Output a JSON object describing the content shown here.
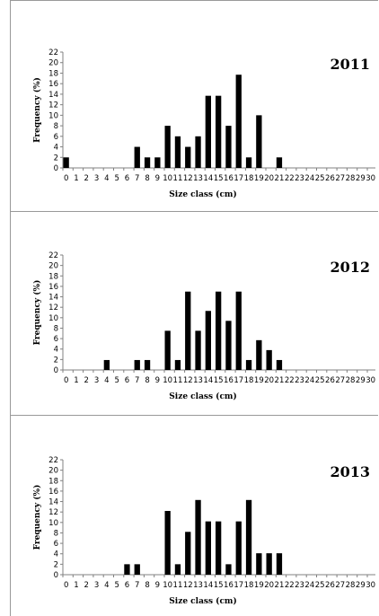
{
  "chart_data": [
    {
      "type": "bar",
      "title": "2011",
      "xlabel": "Size class (cm)",
      "ylabel": "Frequency (%)",
      "ylim": [
        0,
        22
      ],
      "yticks": [
        "0",
        "2",
        "4",
        "6",
        "8",
        "10",
        "12",
        "14",
        "16",
        "18",
        "20",
        "22"
      ],
      "categories": [
        "0",
        "1",
        "2",
        "3",
        "4",
        "5",
        "6",
        "7",
        "8",
        "9",
        "10",
        "11",
        "12",
        "13",
        "14",
        "15",
        "16",
        "17",
        "18",
        "19",
        "20",
        "21",
        "22",
        "23",
        "24",
        "25",
        "26",
        "27",
        "28",
        "29",
        "30"
      ],
      "values": [
        2,
        0,
        0,
        0,
        0,
        0,
        0,
        4,
        2,
        2,
        8,
        6,
        4,
        6,
        13.7,
        13.7,
        8,
        17.7,
        2,
        10,
        0,
        2,
        0,
        0,
        0,
        0,
        0,
        0,
        0,
        0,
        0
      ],
      "color": "#000000"
    },
    {
      "type": "bar",
      "title": "2012",
      "xlabel": "Size class (cm)",
      "ylabel": "Frequency (%)",
      "ylim": [
        0,
        22
      ],
      "yticks": [
        "0",
        "2",
        "4",
        "6",
        "8",
        "10",
        "12",
        "14",
        "16",
        "18",
        "20",
        "22"
      ],
      "categories": [
        "0",
        "1",
        "2",
        "3",
        "4",
        "5",
        "6",
        "7",
        "8",
        "9",
        "10",
        "11",
        "12",
        "13",
        "14",
        "15",
        "16",
        "17",
        "18",
        "19",
        "20",
        "21",
        "22",
        "23",
        "24",
        "25",
        "26",
        "27",
        "28",
        "29",
        "30"
      ],
      "values": [
        0,
        0,
        0,
        0,
        1.9,
        0,
        0,
        1.9,
        1.9,
        0,
        7.5,
        1.9,
        15,
        7.5,
        11.3,
        15,
        9.4,
        15,
        1.9,
        5.7,
        3.8,
        1.9,
        0,
        0,
        0,
        0,
        0,
        0,
        0,
        0,
        0
      ],
      "color": "#000000"
    },
    {
      "type": "bar",
      "title": "2013",
      "xlabel": "Size class (cm)",
      "ylabel": "Frequency (%)",
      "ylim": [
        0,
        22
      ],
      "yticks": [
        "0",
        "2",
        "4",
        "6",
        "8",
        "10",
        "12",
        "14",
        "16",
        "18",
        "20",
        "22"
      ],
      "categories": [
        "0",
        "1",
        "2",
        "3",
        "4",
        "5",
        "6",
        "7",
        "8",
        "9",
        "10",
        "11",
        "12",
        "13",
        "14",
        "15",
        "16",
        "17",
        "18",
        "19",
        "20",
        "21",
        "22",
        "23",
        "24",
        "25",
        "26",
        "27",
        "28",
        "29",
        "30"
      ],
      "values": [
        0,
        0,
        0,
        0,
        0,
        0,
        2,
        2,
        0,
        0,
        12.2,
        2,
        8.2,
        14.3,
        10.2,
        10.2,
        2,
        10.2,
        14.3,
        4.1,
        4.1,
        4.1,
        0,
        0,
        0,
        0,
        0,
        0,
        0,
        0,
        0
      ],
      "color": "#000000"
    }
  ]
}
